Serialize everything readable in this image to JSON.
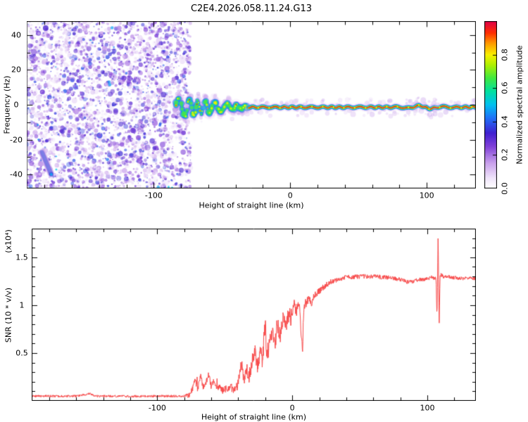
{
  "title": "C2E4.2026.058.11.24.G13",
  "chart_data": [
    {
      "type": "heatmap",
      "panel": "spectrogram",
      "xlabel": "Height of straight line (km)",
      "ylabel": "Frequency (Hz)",
      "xlim": [
        -193,
        136
      ],
      "ylim": [
        -48,
        48
      ],
      "xticks": [
        {
          "v": -100,
          "label": "-100"
        },
        {
          "v": 0,
          "label": "0"
        },
        {
          "v": 100,
          "label": "100"
        }
      ],
      "xminor_step": 20,
      "yticks": [
        {
          "v": 40,
          "label": "40"
        },
        {
          "v": 20,
          "label": "20"
        },
        {
          "v": 0,
          "label": "0"
        },
        {
          "v": -20,
          "label": "-20"
        },
        {
          "v": -40,
          "label": "-40"
        }
      ],
      "yminor_step": 10,
      "colorbar": {
        "label": "Normalized spectral amplitude",
        "range": [
          0,
          1
        ],
        "ticks": [
          {
            "v": 0,
            "label": "0.0"
          },
          {
            "v": 0.2,
            "label": "0.2"
          },
          {
            "v": 0.4,
            "label": "0.4"
          },
          {
            "v": 0.6,
            "label": "0.6"
          },
          {
            "v": 0.8,
            "label": "0.8"
          }
        ],
        "colormap": [
          {
            "t": 0.0,
            "color": "#ffffff"
          },
          {
            "t": 0.06,
            "color": "#f0e4fa"
          },
          {
            "t": 0.15,
            "color": "#c9a0ec"
          },
          {
            "t": 0.25,
            "color": "#8040d8"
          },
          {
            "t": 0.33,
            "color": "#4020d0"
          },
          {
            "t": 0.42,
            "color": "#2070f8"
          },
          {
            "t": 0.5,
            "color": "#00c0f0"
          },
          {
            "t": 0.58,
            "color": "#00e0a0"
          },
          {
            "t": 0.66,
            "color": "#40e840"
          },
          {
            "t": 0.74,
            "color": "#b0f000"
          },
          {
            "t": 0.8,
            "color": "#f8f000"
          },
          {
            "t": 0.87,
            "color": "#ff9800"
          },
          {
            "t": 0.93,
            "color": "#ff3000"
          },
          {
            "t": 1.0,
            "color": "#e00048"
          }
        ]
      },
      "features": {
        "noise_region": {
          "x_range": [
            -193,
            -73
          ],
          "max_amplitude": 0.35
        },
        "signal_trace": {
          "x_start": -84,
          "x_end": 136,
          "center_frequency_hz": -1.4,
          "wiggle_end_x": -30,
          "wiggle_amplitude_hz": 5.2,
          "core_amplitude": 0.97
        },
        "artifact_streak": {
          "x_from": -182,
          "hz_from": -27,
          "x_to": -175,
          "hz_to": -40
        }
      }
    },
    {
      "type": "line",
      "panel": "snr",
      "xlabel": "Height of straight line (km)",
      "ylabel": "SNR (10 * v/v)",
      "ylabel_scale": "(x10⁴)",
      "xlim": [
        -193,
        136
      ],
      "ylim": [
        0,
        1.8
      ],
      "xticks": [
        {
          "v": -100,
          "label": "-100"
        },
        {
          "v": 0,
          "label": "0"
        },
        {
          "v": 100,
          "label": "100"
        }
      ],
      "xminor_step": 20,
      "yticks": [
        {
          "v": 0.5,
          "label": "0.5"
        },
        {
          "v": 1,
          "label": "1"
        },
        {
          "v": 1.5,
          "label": "1.5"
        }
      ],
      "yminor_step": 0.1,
      "series": [
        {
          "name": "SNR",
          "color": "#f84848",
          "envelope": [
            [
              -193,
              0.05
            ],
            [
              -160,
              0.05
            ],
            [
              -150,
              0.075
            ],
            [
              -146,
              0.05
            ],
            [
              -120,
              0.048
            ],
            [
              -100,
              0.05
            ],
            [
              -80,
              0.05
            ],
            [
              -76,
              0.06
            ],
            [
              -74,
              0.12
            ],
            [
              -72,
              0.22
            ],
            [
              -70,
              0.12
            ],
            [
              -68,
              0.26
            ],
            [
              -66,
              0.14
            ],
            [
              -64,
              0.18
            ],
            [
              -62,
              0.28
            ],
            [
              -60,
              0.14
            ],
            [
              -58,
              0.22
            ],
            [
              -56,
              0.12
            ],
            [
              -54,
              0.16
            ],
            [
              -52,
              0.1
            ],
            [
              -50,
              0.14
            ],
            [
              -48,
              0.1
            ],
            [
              -46,
              0.17
            ],
            [
              -44,
              0.11
            ],
            [
              -42,
              0.13
            ],
            [
              -40,
              0.18
            ],
            [
              -38,
              0.42
            ],
            [
              -36,
              0.22
            ],
            [
              -34,
              0.32
            ],
            [
              -32,
              0.25
            ],
            [
              -30,
              0.38
            ],
            [
              -28,
              0.55
            ],
            [
              -26,
              0.35
            ],
            [
              -24,
              0.5
            ],
            [
              -22,
              0.42
            ],
            [
              -20,
              0.85
            ],
            [
              -19,
              0.45
            ],
            [
              -17,
              0.6
            ],
            [
              -15,
              0.72
            ],
            [
              -13,
              0.58
            ],
            [
              -11,
              0.8
            ],
            [
              -9,
              0.68
            ],
            [
              -7,
              0.85
            ],
            [
              -5,
              0.78
            ],
            [
              -3,
              0.92
            ],
            [
              -1,
              0.85
            ],
            [
              1,
              1.0
            ],
            [
              3,
              0.92
            ],
            [
              5,
              1.02
            ],
            [
              6.5,
              0.72
            ],
            [
              7.5,
              0.5
            ],
            [
              8.5,
              0.95
            ],
            [
              10,
              1.02
            ],
            [
              12,
              1.06
            ],
            [
              14,
              1.02
            ],
            [
              16,
              1.1
            ],
            [
              18,
              1.12
            ],
            [
              20,
              1.15
            ],
            [
              24,
              1.2
            ],
            [
              28,
              1.24
            ],
            [
              34,
              1.27
            ],
            [
              40,
              1.29
            ],
            [
              50,
              1.3
            ],
            [
              60,
              1.3
            ],
            [
              70,
              1.29
            ],
            [
              80,
              1.27
            ],
            [
              86,
              1.24
            ],
            [
              92,
              1.26
            ],
            [
              98,
              1.27
            ],
            [
              103,
              1.29
            ],
            [
              106.5,
              1.28
            ],
            [
              107.2,
              0.85
            ],
            [
              108,
              1.73
            ],
            [
              108.8,
              0.8
            ],
            [
              109.5,
              1.32
            ],
            [
              112,
              1.3
            ],
            [
              118,
              1.29
            ],
            [
              126,
              1.28
            ],
            [
              136,
              1.28
            ]
          ],
          "noise_amplitude": [
            [
              -193,
              0.012
            ],
            [
              -80,
              0.012
            ],
            [
              -76,
              0.03
            ],
            [
              -42,
              0.04
            ],
            [
              -40,
              0.06
            ],
            [
              -30,
              0.09
            ],
            [
              -20,
              0.1
            ],
            [
              0,
              0.09
            ],
            [
              10,
              0.05
            ],
            [
              20,
              0.035
            ],
            [
              30,
              0.025
            ],
            [
              136,
              0.018
            ]
          ]
        }
      ]
    }
  ]
}
